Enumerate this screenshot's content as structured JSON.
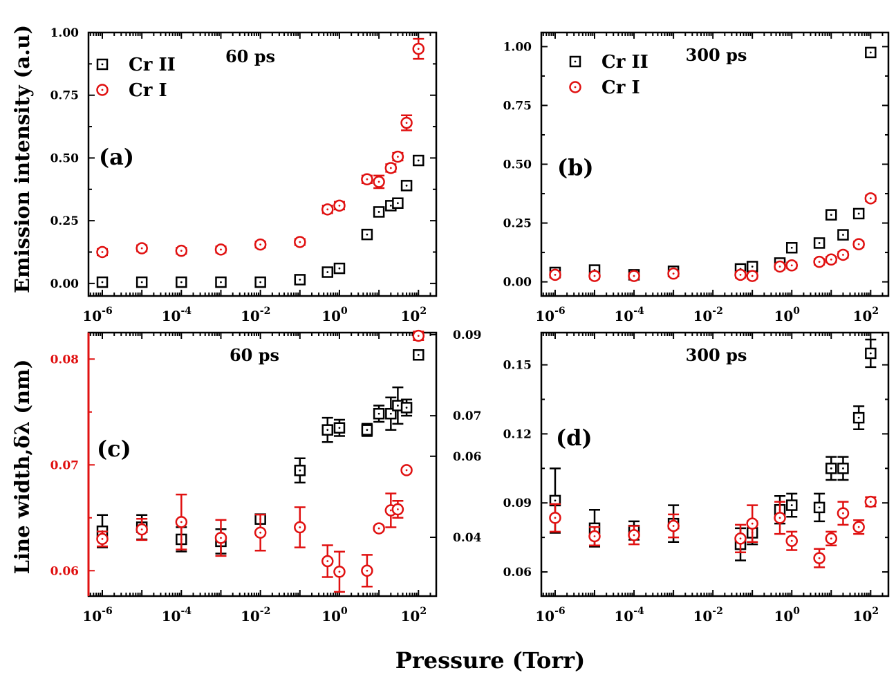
{
  "figure": {
    "ylabel_top": "Emission intensity (a.u)",
    "ylabel_bottom": "Line width,δλ (nm)",
    "xlabel": "Pressure (Torr)",
    "colors": {
      "cr2": "#000000",
      "cr1": "#e01010"
    }
  },
  "chart_data": [
    {
      "id": "a",
      "type": "scatter",
      "panel_label": "(a)",
      "title": "60 ps",
      "xscale": "log",
      "xlim_log10": [
        -6.35,
        2.45
      ],
      "ylim": [
        -0.05,
        1.0
      ],
      "yticks": [
        "0.00",
        "0.25",
        "0.50",
        "0.75",
        "1.00"
      ],
      "ytick_values": [
        0,
        0.25,
        0.5,
        0.75,
        1.0
      ],
      "xticks": [
        {
          "base": "10",
          "exp": "-6",
          "v": -6
        },
        {
          "base": "10",
          "exp": "-4",
          "v": -4
        },
        {
          "base": "10",
          "exp": "-2",
          "v": -2
        },
        {
          "base": "10",
          "exp": "0",
          "v": 0
        },
        {
          "base": "10",
          "exp": "2",
          "v": 2
        }
      ],
      "legend": [
        "Cr II",
        "Cr I"
      ],
      "series": [
        {
          "name": "Cr II",
          "marker": "square",
          "color": "#000000",
          "x": [
            1e-06,
            1e-05,
            0.0001,
            0.001,
            0.01,
            0.1,
            0.5,
            1,
            5,
            10,
            20,
            30,
            50,
            100
          ],
          "y": [
            0.005,
            0.005,
            0.005,
            0.005,
            0.005,
            0.015,
            0.045,
            0.06,
            0.195,
            0.285,
            0.31,
            0.32,
            0.39,
            0.49
          ],
          "err": [
            0.01,
            0.01,
            0.01,
            0.01,
            0.01,
            0.01,
            0.015,
            0.015,
            0.015,
            0.015,
            0.015,
            0.015,
            0.015,
            0.015
          ]
        },
        {
          "name": "Cr I",
          "marker": "circle",
          "color": "#e01010",
          "x": [
            1e-06,
            1e-05,
            0.0001,
            0.001,
            0.01,
            0.1,
            0.5,
            1,
            5,
            10,
            20,
            30,
            50,
            100
          ],
          "y": [
            0.125,
            0.14,
            0.13,
            0.135,
            0.155,
            0.165,
            0.295,
            0.31,
            0.415,
            0.405,
            0.46,
            0.505,
            0.64,
            0.935
          ],
          "err": [
            0.012,
            0.012,
            0.012,
            0.012,
            0.012,
            0.012,
            0.015,
            0.015,
            0.015,
            0.025,
            0.015,
            0.015,
            0.03,
            0.04
          ]
        }
      ]
    },
    {
      "id": "b",
      "type": "scatter",
      "panel_label": "(b)",
      "title": "300 ps",
      "xscale": "log",
      "xlim_log10": [
        -6.35,
        2.45
      ],
      "ylim": [
        -0.06,
        1.06
      ],
      "yticks": [
        "0.00",
        "0.25",
        "0.50",
        "0.75",
        "1.00"
      ],
      "ytick_values": [
        0,
        0.25,
        0.5,
        0.75,
        1.0
      ],
      "xticks": [
        {
          "base": "10",
          "exp": "-6",
          "v": -6
        },
        {
          "base": "10",
          "exp": "-4",
          "v": -4
        },
        {
          "base": "10",
          "exp": "-2",
          "v": -2
        },
        {
          "base": "10",
          "exp": "0",
          "v": 0
        },
        {
          "base": "10",
          "exp": "2",
          "v": 2
        }
      ],
      "legend": [
        "Cr II",
        "Cr I"
      ],
      "series": [
        {
          "name": "Cr II",
          "marker": "square",
          "color": "#000000",
          "x": [
            1e-06,
            1e-05,
            0.0001,
            0.001,
            0.05,
            0.1,
            0.5,
            1,
            5,
            10,
            20,
            50,
            100
          ],
          "y": [
            0.04,
            0.05,
            0.03,
            0.045,
            0.055,
            0.065,
            0.08,
            0.145,
            0.165,
            0.285,
            0.2,
            0.29,
            0.975
          ],
          "err": [
            0.012,
            0.012,
            0.012,
            0.012,
            0.012,
            0.012,
            0.012,
            0.012,
            0.012,
            0.012,
            0.012,
            0.012,
            0.012
          ]
        },
        {
          "name": "Cr I",
          "marker": "circle",
          "color": "#e01010",
          "x": [
            1e-06,
            1e-05,
            0.0001,
            0.001,
            0.05,
            0.1,
            0.5,
            1,
            5,
            10,
            20,
            50,
            100
          ],
          "y": [
            0.03,
            0.025,
            0.025,
            0.035,
            0.03,
            0.025,
            0.065,
            0.07,
            0.085,
            0.095,
            0.115,
            0.16,
            0.355
          ],
          "err": [
            0.012,
            0.012,
            0.012,
            0.012,
            0.012,
            0.012,
            0.012,
            0.012,
            0.012,
            0.012,
            0.012,
            0.012,
            0.012
          ]
        }
      ]
    },
    {
      "id": "c",
      "type": "scatter",
      "panel_label": "(c)",
      "title": "60 ps",
      "xscale": "log",
      "xlim_log10": [
        -6.35,
        2.45
      ],
      "ylim": [
        0.0576,
        0.0825
      ],
      "yticks": [
        "0.06",
        "0.07",
        "0.08"
      ],
      "ytick_values": [
        0.06,
        0.07,
        0.08
      ],
      "y2lim": [
        0.0255,
        0.0905
      ],
      "y2ticks": [
        "0.04",
        "0.06",
        "0.07",
        "0.09"
      ],
      "y2tick_values": [
        0.04,
        0.06,
        0.07,
        0.09
      ],
      "xticks": [
        {
          "base": "10",
          "exp": "-6",
          "v": -6
        },
        {
          "base": "10",
          "exp": "-4",
          "v": -4
        },
        {
          "base": "10",
          "exp": "-2",
          "v": -2
        },
        {
          "base": "10",
          "exp": "0",
          "v": 0
        },
        {
          "base": "10",
          "exp": "2",
          "v": 2
        }
      ],
      "series": [
        {
          "name": "Cr II",
          "marker": "square",
          "color": "#000000",
          "axis": "right",
          "x": [
            1e-06,
            1e-05,
            0.0001,
            0.001,
            0.01,
            0.1,
            0.5,
            1,
            5,
            10,
            20,
            30,
            50,
            100
          ],
          "y": [
            0.0415,
            0.0425,
            0.0395,
            0.039,
            0.0445,
            0.0565,
            0.0665,
            0.067,
            0.0665,
            0.0705,
            0.0705,
            0.0725,
            0.072,
            0.085
          ],
          "err": [
            0.004,
            0.003,
            0.003,
            0.003,
            0.0008,
            0.003,
            0.003,
            0.002,
            0.0015,
            0.002,
            0.004,
            0.0045,
            0.002,
            0.001
          ]
        },
        {
          "name": "Cr I",
          "marker": "circle",
          "color": "#e01010",
          "axis": "left",
          "x": [
            1e-06,
            1e-05,
            0.0001,
            0.001,
            0.01,
            0.1,
            0.5,
            1,
            5,
            10,
            20,
            30,
            50,
            100
          ],
          "y": [
            0.063,
            0.0639,
            0.0646,
            0.0631,
            0.0636,
            0.0641,
            0.0609,
            0.0599,
            0.06,
            0.064,
            0.0657,
            0.0658,
            0.0695,
            0.0822
          ],
          "err": [
            0.0007,
            0.001,
            0.0026,
            0.0017,
            0.0017,
            0.0019,
            0.0015,
            0.0019,
            0.0015,
            0.0002,
            0.0016,
            0.0008,
            0.0002,
            0.0004
          ]
        }
      ]
    },
    {
      "id": "d",
      "type": "scatter",
      "panel_label": "(d)",
      "title": "300 ps",
      "xscale": "log",
      "xlim_log10": [
        -6.35,
        2.45
      ],
      "ylim": [
        0.0495,
        0.164
      ],
      "yticks": [
        "0.06",
        "0.09",
        "0.12",
        "0.15"
      ],
      "ytick_values": [
        0.06,
        0.09,
        0.12,
        0.15
      ],
      "xticks": [
        {
          "base": "10",
          "exp": "-6",
          "v": -6
        },
        {
          "base": "10",
          "exp": "-4",
          "v": -4
        },
        {
          "base": "10",
          "exp": "-2",
          "v": -2
        },
        {
          "base": "10",
          "exp": "0",
          "v": 0
        },
        {
          "base": "10",
          "exp": "2",
          "v": 2
        }
      ],
      "series": [
        {
          "name": "Cr II",
          "marker": "square",
          "color": "#000000",
          "x": [
            1e-06,
            1e-05,
            0.0001,
            0.001,
            0.05,
            0.1,
            0.5,
            1,
            5,
            10,
            20,
            50,
            100
          ],
          "y": [
            0.091,
            0.079,
            0.078,
            0.081,
            0.072,
            0.077,
            0.087,
            0.089,
            0.088,
            0.105,
            0.105,
            0.127,
            0.155
          ],
          "err": [
            0.014,
            0.008,
            0.004,
            0.008,
            0.007,
            0.005,
            0.006,
            0.005,
            0.006,
            0.005,
            0.005,
            0.005,
            0.006
          ]
        },
        {
          "name": "Cr I",
          "marker": "circle",
          "color": "#e01010",
          "x": [
            1e-06,
            1e-05,
            0.0001,
            0.001,
            0.05,
            0.1,
            0.5,
            1,
            5,
            10,
            20,
            50,
            100
          ],
          "y": [
            0.0835,
            0.0755,
            0.076,
            0.08,
            0.0745,
            0.081,
            0.0835,
            0.0735,
            0.066,
            0.0745,
            0.0855,
            0.0795,
            0.0905
          ],
          "err": [
            0.006,
            0.004,
            0.004,
            0.005,
            0.006,
            0.008,
            0.007,
            0.004,
            0.004,
            0.003,
            0.005,
            0.003,
            0.002
          ]
        }
      ]
    }
  ]
}
